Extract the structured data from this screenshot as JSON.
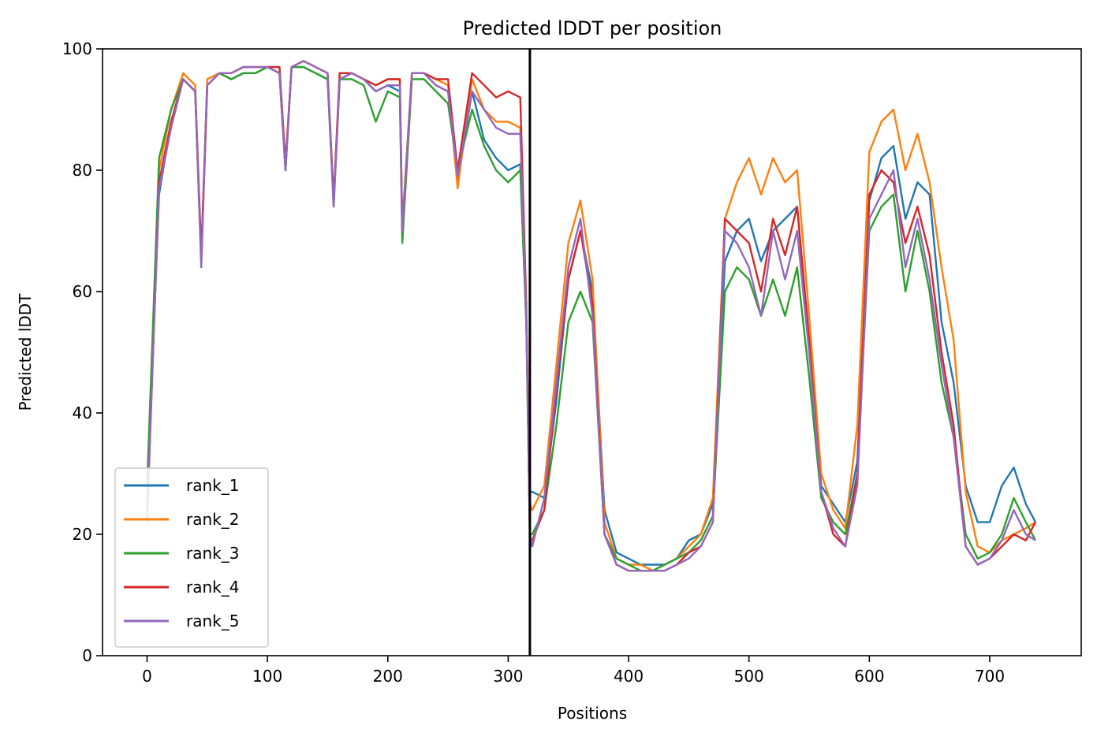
{
  "chart_data": {
    "type": "line",
    "title": "Predicted lDDT per position",
    "xlabel": "Positions",
    "ylabel": "Predicted lDDT",
    "xlim": [
      -37,
      776
    ],
    "ylim": [
      0,
      100
    ],
    "xticks": [
      0,
      100,
      200,
      300,
      400,
      500,
      600,
      700
    ],
    "yticks": [
      0,
      20,
      40,
      60,
      80,
      100
    ],
    "grid": false,
    "legend_position": "lower-left",
    "vline": 318,
    "x": [
      0,
      10,
      20,
      30,
      40,
      45,
      50,
      60,
      70,
      80,
      90,
      100,
      110,
      115,
      120,
      130,
      140,
      150,
      155,
      160,
      170,
      180,
      190,
      200,
      210,
      212,
      220,
      230,
      240,
      250,
      258,
      270,
      280,
      290,
      300,
      310,
      315,
      318,
      320,
      330,
      340,
      350,
      360,
      370,
      380,
      390,
      400,
      410,
      420,
      430,
      440,
      450,
      460,
      470,
      480,
      490,
      500,
      510,
      520,
      530,
      540,
      550,
      560,
      570,
      580,
      590,
      600,
      610,
      620,
      630,
      640,
      650,
      660,
      670,
      680,
      690,
      700,
      710,
      720,
      730,
      738
    ],
    "series": [
      {
        "name": "rank_1",
        "color": "#1f77b4",
        "values": [
          25,
          76,
          88,
          95,
          93,
          66,
          94,
          96,
          95,
          96,
          96,
          97,
          96,
          80,
          97,
          97,
          96,
          95,
          74,
          95,
          96,
          95,
          93,
          94,
          93,
          70,
          96,
          96,
          94,
          93,
          78,
          93,
          85,
          82,
          80,
          81,
          55,
          27,
          27,
          26,
          42,
          62,
          70,
          60,
          24,
          17,
          16,
          15,
          15,
          15,
          16,
          19,
          20,
          25,
          65,
          70,
          72,
          65,
          70,
          72,
          74,
          52,
          28,
          25,
          22,
          32,
          75,
          82,
          84,
          72,
          78,
          76,
          55,
          45,
          28,
          22,
          22,
          28,
          31,
          25,
          22
        ]
      },
      {
        "name": "rank_2",
        "color": "#ff7f0e",
        "values": [
          24,
          80,
          90,
          96,
          94,
          66,
          95,
          96,
          96,
          97,
          97,
          97,
          97,
          81,
          97,
          98,
          97,
          96,
          75,
          96,
          96,
          95,
          94,
          95,
          95,
          71,
          96,
          96,
          95,
          94,
          77,
          95,
          90,
          88,
          88,
          87,
          56,
          25,
          24,
          28,
          48,
          68,
          75,
          62,
          22,
          16,
          15,
          15,
          14,
          15,
          16,
          18,
          20,
          26,
          72,
          78,
          82,
          76,
          82,
          78,
          80,
          56,
          30,
          24,
          21,
          38,
          83,
          88,
          90,
          80,
          86,
          78,
          64,
          52,
          27,
          18,
          17,
          19,
          20,
          21,
          22
        ]
      },
      {
        "name": "rank_3",
        "color": "#2ca02c",
        "values": [
          28,
          82,
          90,
          95,
          93,
          65,
          94,
          96,
          95,
          96,
          96,
          97,
          96,
          80,
          97,
          97,
          96,
          95,
          75,
          95,
          95,
          94,
          88,
          93,
          92,
          68,
          95,
          95,
          93,
          91,
          80,
          90,
          84,
          80,
          78,
          80,
          55,
          20,
          20,
          24,
          38,
          55,
          60,
          55,
          20,
          16,
          15,
          14,
          14,
          15,
          16,
          17,
          19,
          23,
          60,
          64,
          62,
          56,
          62,
          56,
          64,
          46,
          26,
          22,
          20,
          30,
          70,
          74,
          76,
          60,
          70,
          60,
          45,
          36,
          20,
          16,
          17,
          20,
          26,
          22,
          19
        ]
      },
      {
        "name": "rank_4",
        "color": "#d62728",
        "values": [
          22,
          78,
          88,
          95,
          93,
          66,
          94,
          96,
          96,
          97,
          97,
          97,
          97,
          81,
          97,
          98,
          97,
          96,
          75,
          96,
          96,
          95,
          94,
          95,
          95,
          70,
          96,
          96,
          95,
          95,
          80,
          96,
          94,
          92,
          93,
          92,
          58,
          19,
          19,
          24,
          44,
          62,
          70,
          58,
          20,
          15,
          14,
          14,
          14,
          14,
          15,
          17,
          18,
          22,
          72,
          70,
          68,
          60,
          72,
          66,
          74,
          52,
          27,
          20,
          18,
          30,
          76,
          80,
          78,
          68,
          74,
          66,
          50,
          38,
          18,
          15,
          16,
          18,
          20,
          19,
          22
        ]
      },
      {
        "name": "rank_5",
        "color": "#9467bd",
        "values": [
          23,
          77,
          87,
          95,
          93,
          64,
          94,
          96,
          96,
          97,
          97,
          97,
          96,
          80,
          97,
          98,
          97,
          96,
          74,
          95,
          96,
          95,
          93,
          94,
          94,
          70,
          96,
          96,
          94,
          93,
          79,
          93,
          90,
          87,
          86,
          86,
          56,
          20,
          18,
          26,
          45,
          64,
          72,
          56,
          20,
          15,
          14,
          14,
          14,
          14,
          15,
          16,
          18,
          22,
          70,
          68,
          64,
          56,
          70,
          62,
          70,
          50,
          27,
          21,
          18,
          28,
          72,
          76,
          80,
          64,
          72,
          62,
          48,
          36,
          18,
          15,
          16,
          19,
          24,
          20,
          19
        ]
      }
    ]
  }
}
